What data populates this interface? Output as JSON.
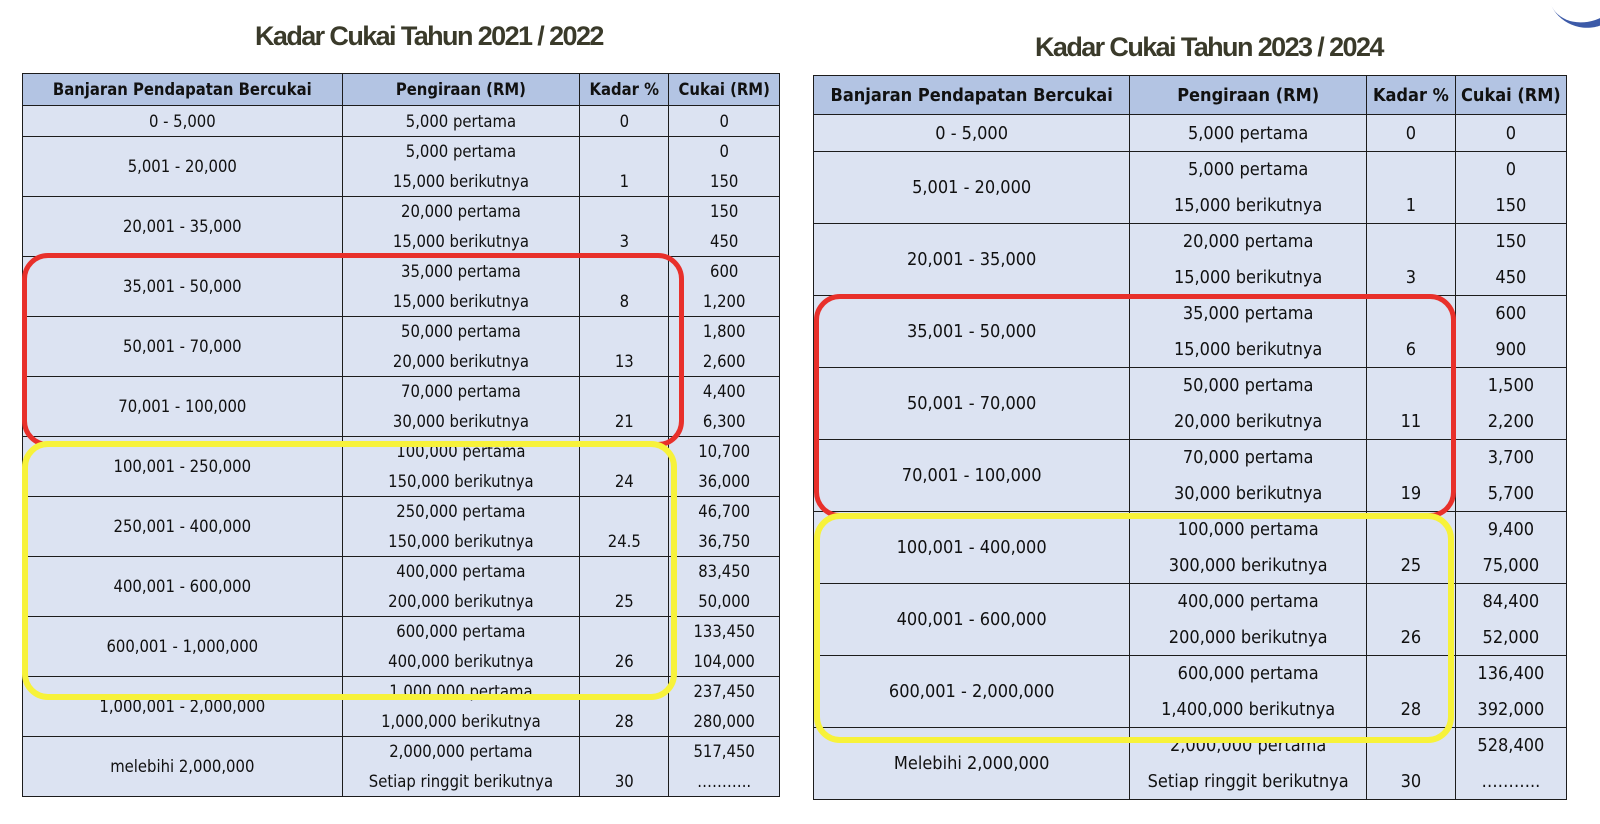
{
  "left": {
    "title": "Kadar Cukai Tahun 2021 / 2022",
    "headers": [
      "Banjaran Pendapatan Bercukai",
      "Pengiraan (RM)",
      "Kadar %",
      "Cukai (RM)"
    ],
    "rows": [
      {
        "range": "0 - 5,000",
        "calc": [
          "5,000 pertama"
        ],
        "rate": [
          "0"
        ],
        "tax": [
          "0"
        ]
      },
      {
        "range": "5,001 - 20,000",
        "calc": [
          "5,000 pertama",
          "15,000 berikutnya"
        ],
        "rate": [
          "",
          "1"
        ],
        "tax": [
          "0",
          "150"
        ]
      },
      {
        "range": "20,001 - 35,000",
        "calc": [
          "20,000 pertama",
          "15,000 berikutnya"
        ],
        "rate": [
          "",
          "3"
        ],
        "tax": [
          "150",
          "450"
        ]
      },
      {
        "range": "35,001 - 50,000",
        "calc": [
          "35,000 pertama",
          "15,000 berikutnya"
        ],
        "rate": [
          "",
          "8"
        ],
        "tax": [
          "600",
          "1,200"
        ]
      },
      {
        "range": "50,001 - 70,000",
        "calc": [
          "50,000 pertama",
          "20,000 berikutnya"
        ],
        "rate": [
          "",
          "13"
        ],
        "tax": [
          "1,800",
          "2,600"
        ]
      },
      {
        "range": "70,001 - 100,000",
        "calc": [
          "70,000 pertama",
          "30,000 berikutnya"
        ],
        "rate": [
          "",
          "21"
        ],
        "tax": [
          "4,400",
          "6,300"
        ]
      },
      {
        "range": "100,001 - 250,000",
        "calc": [
          "100,000 pertama",
          "150,000 berikutnya"
        ],
        "rate": [
          "",
          "24"
        ],
        "tax": [
          "10,700",
          "36,000"
        ]
      },
      {
        "range": "250,001 - 400,000",
        "calc": [
          "250,000 pertama",
          "150,000 berikutnya"
        ],
        "rate": [
          "",
          "24.5"
        ],
        "tax": [
          "46,700",
          "36,750"
        ]
      },
      {
        "range": "400,001 - 600,000",
        "calc": [
          "400,000 pertama",
          "200,000 berikutnya"
        ],
        "rate": [
          "",
          "25"
        ],
        "tax": [
          "83,450",
          "50,000"
        ]
      },
      {
        "range": "600,001 - 1,000,000",
        "calc": [
          "600,000 pertama",
          "400,000 berikutnya"
        ],
        "rate": [
          "",
          "26"
        ],
        "tax": [
          "133,450",
          "104,000"
        ]
      },
      {
        "range": "1,000,001 - 2,000,000",
        "calc": [
          "1,000,000 pertama",
          "1,000,000 berikutnya"
        ],
        "rate": [
          "",
          "28"
        ],
        "tax": [
          "237,450",
          "280,000"
        ]
      },
      {
        "range": "melebihi 2,000,000",
        "calc": [
          "2,000,000 pertama",
          "Setiap ringgit berikutnya"
        ],
        "rate": [
          "",
          "30"
        ],
        "tax": [
          "517,450",
          "……….."
        ]
      }
    ]
  },
  "right": {
    "title": "Kadar Cukai Tahun 2023 / 2024",
    "headers": [
      "Banjaran Pendapatan Bercukai",
      "Pengiraan (RM)",
      "Kadar %",
      "Cukai (RM)"
    ],
    "rows": [
      {
        "range": "0 - 5,000",
        "calc": [
          "5,000 pertama"
        ],
        "rate": [
          "0"
        ],
        "tax": [
          "0"
        ]
      },
      {
        "range": "5,001 - 20,000",
        "calc": [
          "5,000 pertama",
          "15,000 berikutnya"
        ],
        "rate": [
          "",
          "1"
        ],
        "tax": [
          "0",
          "150"
        ]
      },
      {
        "range": "20,001 - 35,000",
        "calc": [
          "20,000 pertama",
          "15,000 berikutnya"
        ],
        "rate": [
          "",
          "3"
        ],
        "tax": [
          "150",
          "450"
        ]
      },
      {
        "range": "35,001 - 50,000",
        "calc": [
          "35,000 pertama",
          "15,000 berikutnya"
        ],
        "rate": [
          "",
          "6"
        ],
        "tax": [
          "600",
          "900"
        ]
      },
      {
        "range": "50,001 - 70,000",
        "calc": [
          "50,000 pertama",
          "20,000 berikutnya"
        ],
        "rate": [
          "",
          "11"
        ],
        "tax": [
          "1,500",
          "2,200"
        ]
      },
      {
        "range": "70,001 - 100,000",
        "calc": [
          "70,000 pertama",
          "30,000 berikutnya"
        ],
        "rate": [
          "",
          "19"
        ],
        "tax": [
          "3,700",
          "5,700"
        ]
      },
      {
        "range": "100,001 - 400,000",
        "calc": [
          "100,000 pertama",
          "300,000 berikutnya"
        ],
        "rate": [
          "",
          "25"
        ],
        "tax": [
          "9,400",
          "75,000"
        ]
      },
      {
        "range": "400,001 - 600,000",
        "calc": [
          "400,000 pertama",
          "200,000 berikutnya"
        ],
        "rate": [
          "",
          "26"
        ],
        "tax": [
          "84,400",
          "52,000"
        ]
      },
      {
        "range": "600,001 - 2,000,000",
        "calc": [
          "600,000 pertama",
          "1,400,000 berikutnya"
        ],
        "rate": [
          "",
          "28"
        ],
        "tax": [
          "136,400",
          "392,000"
        ]
      },
      {
        "range": "Melebihi 2,000,000",
        "calc": [
          "2,000,000 pertama",
          "Setiap ringgit berikutnya"
        ],
        "rate": [
          "",
          "30"
        ],
        "tax": [
          "528,400",
          "……….."
        ]
      }
    ]
  },
  "highlights": {
    "red": "#e8302b",
    "yellow": "#f7f23a"
  },
  "colors": {
    "header_bg": "#b3c4e3",
    "cell_bg": "#dce3f2"
  }
}
